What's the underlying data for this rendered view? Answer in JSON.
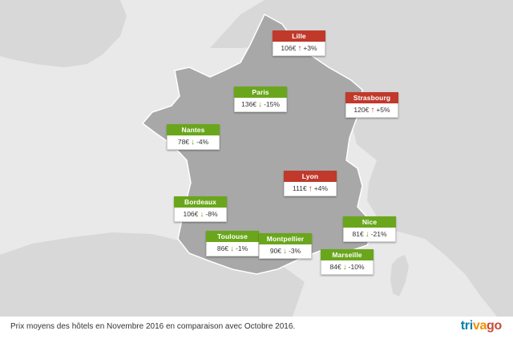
{
  "colors": {
    "down": "#6aa61c",
    "up": "#c0392b",
    "land": "#d8d8d8",
    "france": "#a8a8a8",
    "sea": "#e9e9ea",
    "text": "#333333"
  },
  "cities": [
    {
      "name": "Lille",
      "price": "106€",
      "trend": "up",
      "change": "+3%"
    },
    {
      "name": "Paris",
      "price": "136€",
      "trend": "down",
      "change": "-15%"
    },
    {
      "name": "Strasbourg",
      "price": "120€",
      "trend": "up",
      "change": "+5%"
    },
    {
      "name": "Nantes",
      "price": "78€",
      "trend": "down",
      "change": "-4%"
    },
    {
      "name": "Lyon",
      "price": "111€",
      "trend": "up",
      "change": "+4%"
    },
    {
      "name": "Bordeaux",
      "price": "106€",
      "trend": "down",
      "change": "-8%"
    },
    {
      "name": "Nice",
      "price": "81€",
      "trend": "down",
      "change": "-21%"
    },
    {
      "name": "Toulouse",
      "price": "86€",
      "trend": "down",
      "change": "-1%"
    },
    {
      "name": "Montpellier",
      "price": "90€",
      "trend": "down",
      "change": "-3%"
    },
    {
      "name": "Marseille",
      "price": "84€",
      "trend": "down",
      "change": "-10%"
    }
  ],
  "caption": "Prix moyens des hôtels en Novembre 2016 en comparaison avec Octobre 2016.",
  "logo": {
    "part1": "tri",
    "part2": "va",
    "part3": "go"
  },
  "logo_colors": [
    "#007fad",
    "#f48f00",
    "#c94a38"
  ]
}
